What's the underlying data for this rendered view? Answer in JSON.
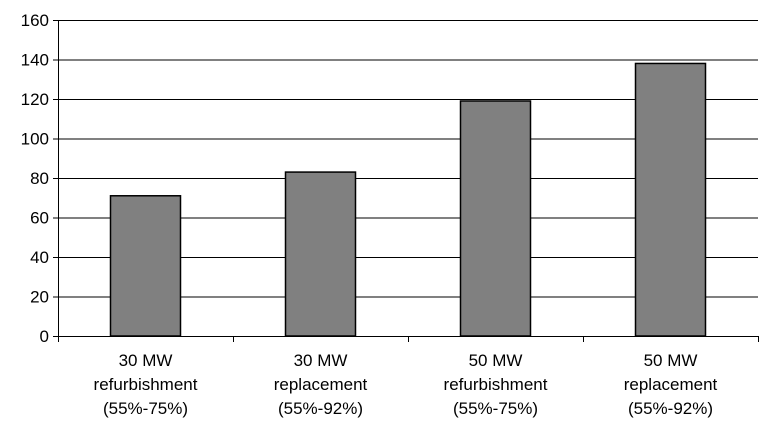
{
  "chart_data": {
    "type": "bar",
    "title": "",
    "xlabel": "",
    "ylabel": "",
    "categories": [
      [
        "30 MW",
        "refurbishment",
        "(55%-75%)"
      ],
      [
        "30 MW",
        "replacement",
        "(55%-92%)"
      ],
      [
        "50 MW",
        "refurbishment",
        "(55%-75%)"
      ],
      [
        "50 MW",
        "replacement",
        "(55%-92%)"
      ]
    ],
    "values": [
      71,
      83,
      119,
      138
    ],
    "ylim": [
      0,
      160
    ],
    "yticks": [
      "0",
      "20",
      "40",
      "60",
      "80",
      "100",
      "120",
      "140",
      "160"
    ],
    "grid": "horizontal",
    "legend": "none",
    "colors": {
      "bar_fill": "#808080",
      "bar_stroke": "#000000",
      "axis": "#000000",
      "grid": "#000000"
    }
  }
}
